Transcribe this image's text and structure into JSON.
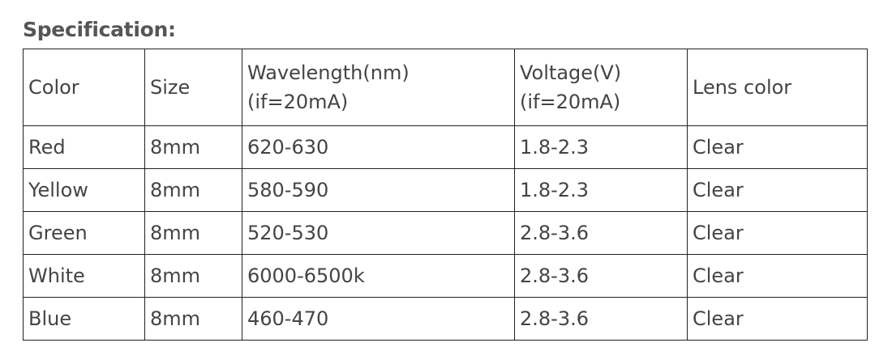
{
  "title": "Specification:",
  "table": {
    "header": [
      [
        "Color"
      ],
      [
        "Size"
      ],
      [
        "Wavelength(nm)",
        "(if=20mA)"
      ],
      [
        "Voltage(V)",
        "(if=20mA)"
      ],
      [
        "Lens color"
      ]
    ],
    "rows": [
      [
        "Red",
        "8mm",
        "620-630",
        "1.8-2.3",
        "Clear"
      ],
      [
        "Yellow",
        "8mm",
        "580-590",
        "1.8-2.3",
        "Clear"
      ],
      [
        "Green",
        "8mm",
        "520-530",
        "2.8-3.6",
        "Clear"
      ],
      [
        "White",
        "8mm",
        "6000-6500k",
        "2.8-3.6",
        "Clear"
      ],
      [
        "Blue",
        "8mm",
        "460-470",
        "2.8-3.6",
        "Clear"
      ]
    ]
  }
}
